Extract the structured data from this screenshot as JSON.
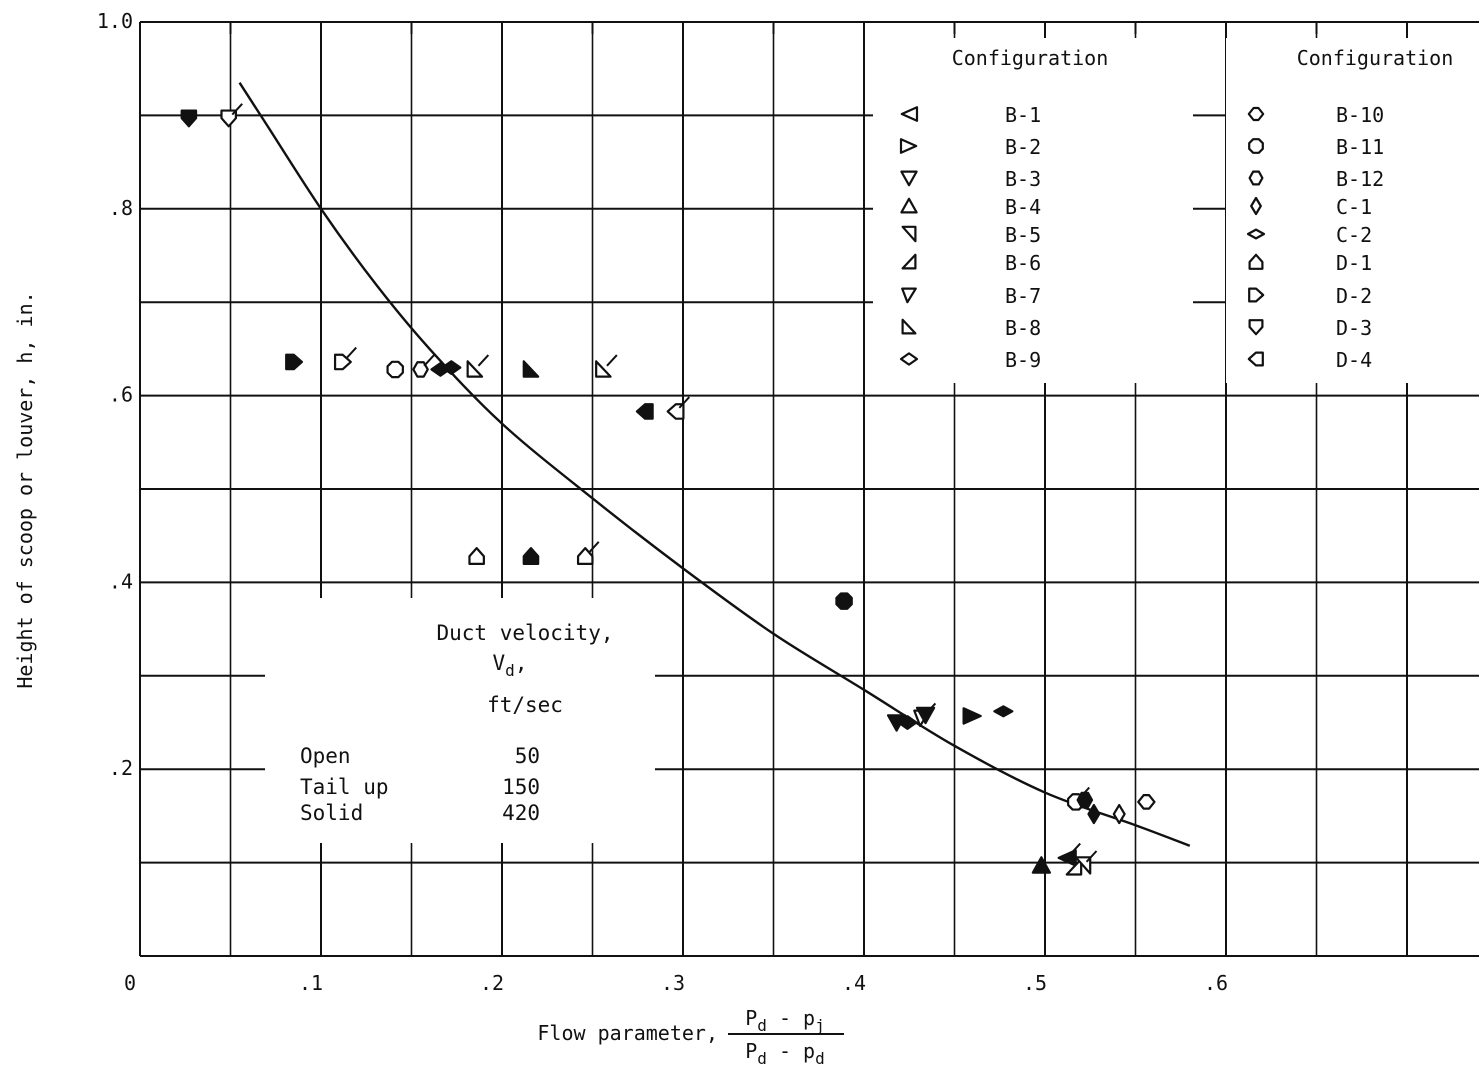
{
  "chart_data": {
    "type": "scatter",
    "xlabel": "Flow parameter,",
    "xlabel_fraction": {
      "numerator": [
        "P",
        "d",
        " - p",
        "j"
      ],
      "denominator": [
        "P",
        "d",
        " - p",
        "d"
      ]
    },
    "ylabel": "Height of scoop or louver, h, in.",
    "xlim": [
      0,
      0.7
    ],
    "ylim": [
      0,
      1.0
    ],
    "x_ticks": [
      {
        "value": 0,
        "label": "0"
      },
      {
        "value": 0.1,
        "label": ".1"
      },
      {
        "value": 0.2,
        "label": ".2"
      },
      {
        "value": 0.3,
        "label": ".3"
      },
      {
        "value": 0.4,
        "label": ".4"
      },
      {
        "value": 0.5,
        "label": ".5"
      },
      {
        "value": 0.6,
        "label": ".6"
      }
    ],
    "y_ticks": [
      {
        "value": 0.2,
        "label": ".2"
      },
      {
        "value": 0.4,
        "label": ".4"
      },
      {
        "value": 0.6,
        "label": ".6"
      },
      {
        "value": 0.8,
        "label": ".8"
      },
      {
        "value": 1.0,
        "label": "1.0"
      }
    ],
    "grid": true,
    "grid_step_x": 0.05,
    "grid_step_y": 0.1,
    "legend_columns": [
      {
        "title": "Configuration",
        "entries": [
          {
            "label": "B-1",
            "marker": "tri-left"
          },
          {
            "label": "B-2",
            "marker": "tri-right"
          },
          {
            "label": "B-3",
            "marker": "tri-down"
          },
          {
            "label": "B-4",
            "marker": "tri-up"
          },
          {
            "label": "B-5",
            "marker": "corner-left"
          },
          {
            "label": "B-6",
            "marker": "corner-up"
          },
          {
            "label": "B-7",
            "marker": "corner-down"
          },
          {
            "label": "B-8",
            "marker": "corner-right"
          },
          {
            "label": "B-9",
            "marker": "diamond-wide"
          }
        ]
      },
      {
        "title": "Configuration",
        "entries": [
          {
            "label": "B-10",
            "marker": "diamond-round"
          },
          {
            "label": "B-11",
            "marker": "octagon"
          },
          {
            "label": "B-12",
            "marker": "hexagon"
          },
          {
            "label": "C-1",
            "marker": "diamond-tall"
          },
          {
            "label": "C-2",
            "marker": "diamond-flat"
          },
          {
            "label": "D-1",
            "marker": "house-up"
          },
          {
            "label": "D-2",
            "marker": "house-right"
          },
          {
            "label": "D-3",
            "marker": "house-down"
          },
          {
            "label": "D-4",
            "marker": "house-left"
          }
        ]
      }
    ],
    "velocity_box": {
      "title_line1": "Duct velocity,",
      "title_line2_main": "V",
      "title_line2_sub": "d",
      "title_line2_tail": ",",
      "title_line3": "ft/sec",
      "rows": [
        {
          "name": "Open",
          "value": "50"
        },
        {
          "name": "Tail up",
          "value": "150"
        },
        {
          "name": "Solid",
          "value": "420"
        }
      ]
    },
    "curve": [
      [
        0.055,
        0.935
      ],
      [
        0.07,
        0.89
      ],
      [
        0.1,
        0.8
      ],
      [
        0.13,
        0.72
      ],
      [
        0.16,
        0.65
      ],
      [
        0.2,
        0.57
      ],
      [
        0.25,
        0.49
      ],
      [
        0.3,
        0.415
      ],
      [
        0.35,
        0.345
      ],
      [
        0.4,
        0.285
      ],
      [
        0.45,
        0.225
      ],
      [
        0.5,
        0.175
      ],
      [
        0.55,
        0.14
      ],
      [
        0.58,
        0.118
      ]
    ],
    "points": [
      {
        "x": 0.027,
        "y": 0.897,
        "marker": "house-down",
        "fill": "solid"
      },
      {
        "x": 0.049,
        "y": 0.897,
        "marker": "house-down",
        "fill": "open",
        "flag": true
      },
      {
        "x": 0.085,
        "y": 0.636,
        "marker": "house-right",
        "fill": "solid"
      },
      {
        "x": 0.112,
        "y": 0.636,
        "marker": "house-right",
        "fill": "open",
        "flag": true
      },
      {
        "x": 0.141,
        "y": 0.628,
        "marker": "octagon",
        "fill": "open"
      },
      {
        "x": 0.155,
        "y": 0.628,
        "marker": "hexagon",
        "fill": "open",
        "flag": true
      },
      {
        "x": 0.166,
        "y": 0.628,
        "marker": "diamond-wide",
        "fill": "solid"
      },
      {
        "x": 0.172,
        "y": 0.63,
        "marker": "diamond-wide",
        "fill": "solid"
      },
      {
        "x": 0.185,
        "y": 0.628,
        "marker": "corner-right",
        "fill": "open",
        "flag": true
      },
      {
        "x": 0.216,
        "y": 0.628,
        "marker": "corner-right",
        "fill": "solid"
      },
      {
        "x": 0.256,
        "y": 0.628,
        "marker": "corner-right",
        "fill": "open",
        "flag": true
      },
      {
        "x": 0.279,
        "y": 0.583,
        "marker": "house-left",
        "fill": "solid"
      },
      {
        "x": 0.296,
        "y": 0.583,
        "marker": "house-left",
        "fill": "open",
        "flag": true
      },
      {
        "x": 0.186,
        "y": 0.428,
        "marker": "house-up",
        "fill": "open"
      },
      {
        "x": 0.216,
        "y": 0.428,
        "marker": "house-up",
        "fill": "solid"
      },
      {
        "x": 0.246,
        "y": 0.428,
        "marker": "house-up",
        "fill": "open",
        "flag": true
      },
      {
        "x": 0.389,
        "y": 0.38,
        "marker": "octagon",
        "fill": "solid"
      },
      {
        "x": 0.418,
        "y": 0.25,
        "marker": "tri-down",
        "fill": "solid"
      },
      {
        "x": 0.424,
        "y": 0.25,
        "marker": "diamond-wide",
        "fill": "solid"
      },
      {
        "x": 0.432,
        "y": 0.255,
        "marker": "corner-down",
        "fill": "open",
        "flag": true
      },
      {
        "x": 0.434,
        "y": 0.258,
        "marker": "tri-down",
        "fill": "solid"
      },
      {
        "x": 0.46,
        "y": 0.257,
        "marker": "tri-right",
        "fill": "solid"
      },
      {
        "x": 0.477,
        "y": 0.262,
        "marker": "diamond-flat",
        "fill": "solid"
      },
      {
        "x": 0.517,
        "y": 0.165,
        "marker": "octagon",
        "fill": "open",
        "flag": true
      },
      {
        "x": 0.522,
        "y": 0.167,
        "marker": "hexagon",
        "fill": "solid"
      },
      {
        "x": 0.527,
        "y": 0.152,
        "marker": "diamond-tall",
        "fill": "solid"
      },
      {
        "x": 0.541,
        "y": 0.152,
        "marker": "diamond-tall",
        "fill": "open"
      },
      {
        "x": 0.556,
        "y": 0.165,
        "marker": "diamond-round",
        "fill": "open"
      },
      {
        "x": 0.498,
        "y": 0.097,
        "marker": "tri-up",
        "fill": "solid"
      },
      {
        "x": 0.512,
        "y": 0.105,
        "marker": "tri-left",
        "fill": "solid",
        "flag": true
      },
      {
        "x": 0.516,
        "y": 0.095,
        "marker": "corner-up",
        "fill": "open"
      },
      {
        "x": 0.521,
        "y": 0.097,
        "marker": "corner-left",
        "fill": "open",
        "flag": true
      }
    ]
  }
}
